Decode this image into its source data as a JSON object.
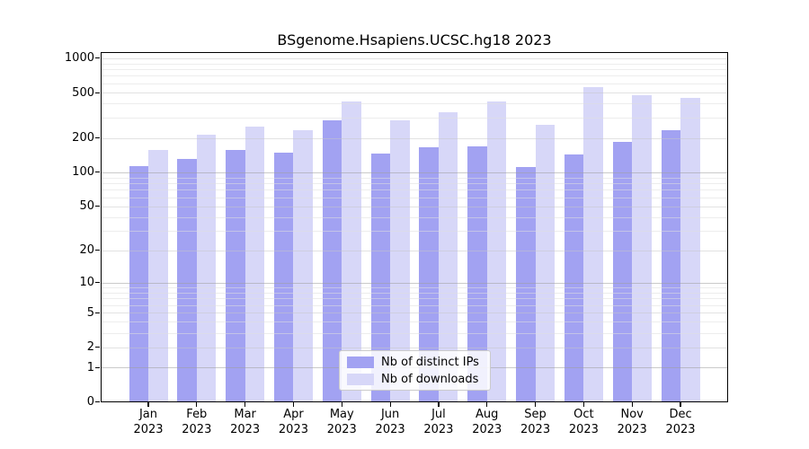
{
  "chart_data": {
    "type": "bar",
    "title": "BSgenome.Hsapiens.UCSC.hg18 2023",
    "categories": [
      "Jan",
      "Feb",
      "Mar",
      "Apr",
      "May",
      "Jun",
      "Jul",
      "Aug",
      "Sep",
      "Oct",
      "Nov",
      "Dec"
    ],
    "x_year_label": "2023",
    "series": [
      {
        "name": "Nb of distinct IPs",
        "color": "#a2a2f2",
        "values": [
          113,
          130,
          158,
          148,
          285,
          146,
          166,
          170,
          112,
          143,
          186,
          234
        ]
      },
      {
        "name": "Nb of downloads",
        "color": "#d7d7f8",
        "values": [
          158,
          212,
          253,
          234,
          420,
          285,
          336,
          420,
          261,
          558,
          475,
          452
        ]
      }
    ],
    "yscale": "log10(value+1)",
    "ylim": [
      0,
      1120
    ],
    "yticks": [
      1000,
      500,
      200,
      100,
      50,
      20,
      10,
      5,
      2,
      1,
      0
    ],
    "ytick_labels": [
      "1000",
      "500",
      "200",
      "100",
      "50",
      "20",
      "10",
      "5",
      "2",
      "1",
      "0"
    ],
    "emphasized_gridline_values": [
      100,
      10,
      1
    ],
    "labeled_gridline_values": [
      1000,
      500,
      200,
      50,
      20,
      5,
      2
    ],
    "minor_gridline_values": [
      900,
      800,
      700,
      600,
      400,
      300,
      90,
      80,
      70,
      60,
      40,
      30,
      9,
      8,
      7,
      6,
      4,
      3
    ],
    "grid": true,
    "xlabel": "",
    "ylabel": "",
    "legend_position": "lower center"
  },
  "colors": {
    "background": "#ffffff",
    "spine": "#000000"
  }
}
